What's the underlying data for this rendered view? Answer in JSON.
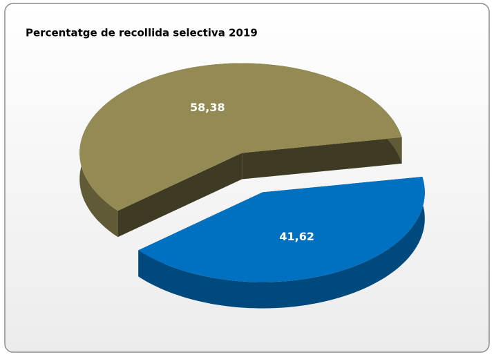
{
  "chart_data": {
    "type": "pie",
    "title": "Percentatge de recollida selectiva 2019",
    "values": [
      58.38,
      41.62
    ],
    "value_labels": [
      "58,38",
      "41,62"
    ],
    "colors": [
      "#948a54",
      "#0070c0"
    ],
    "exploded": true,
    "three_d": true
  }
}
